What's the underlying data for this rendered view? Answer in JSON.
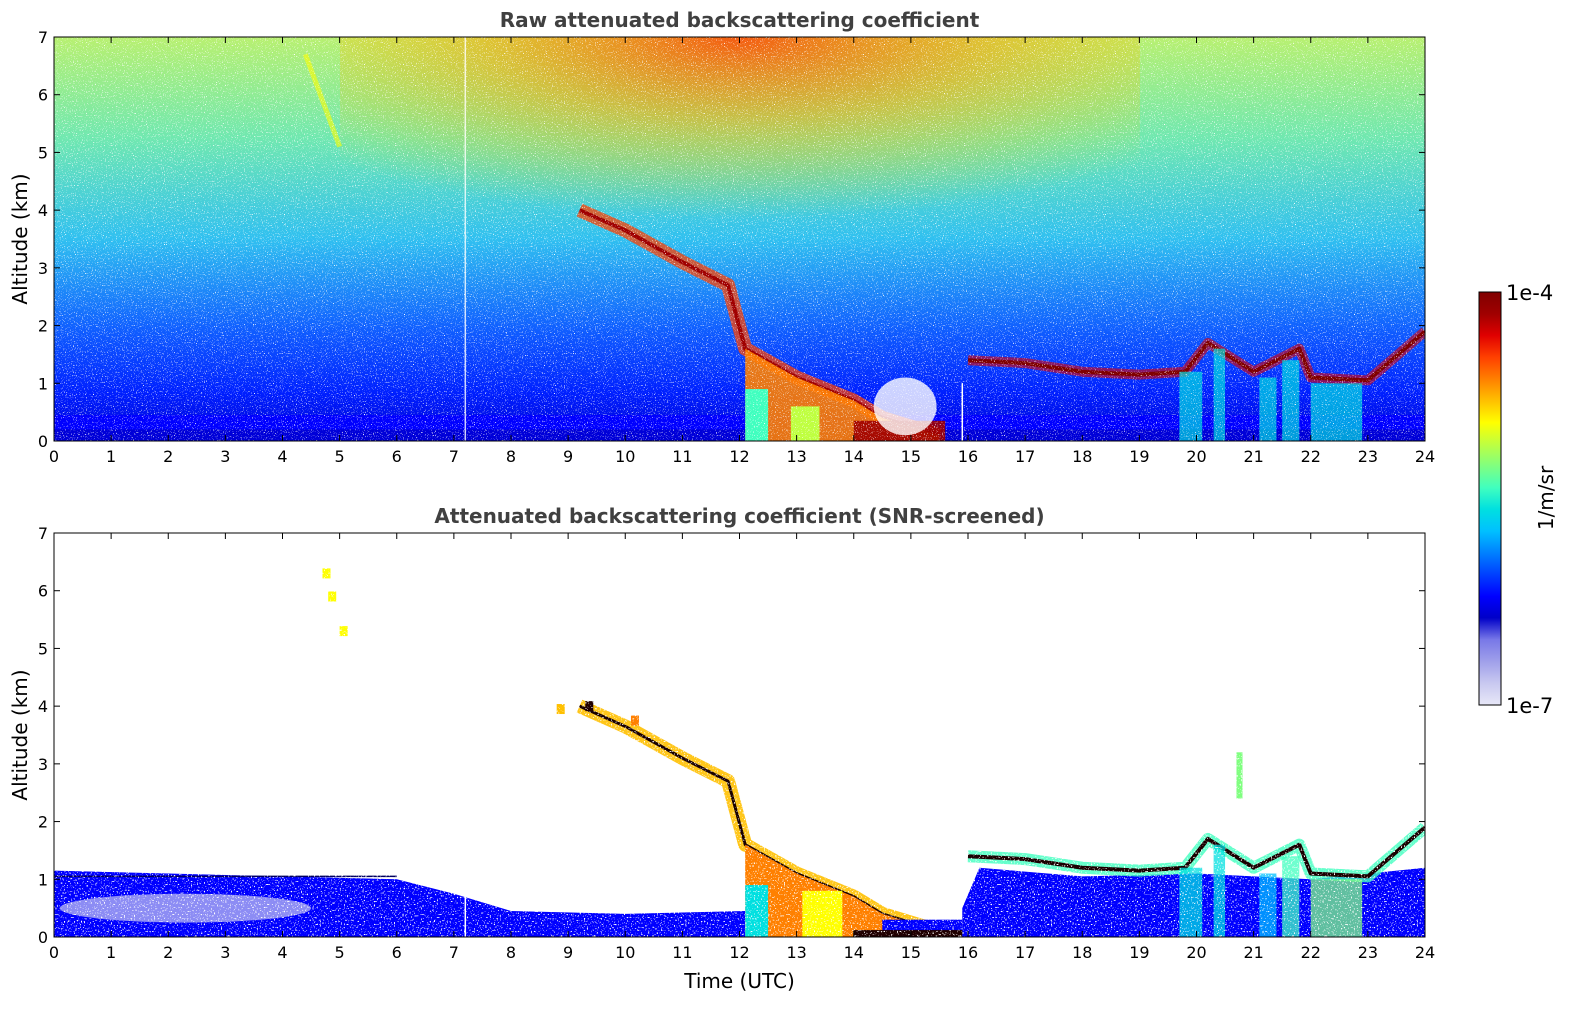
{
  "colors": {
    "colormap": [
      "#0000c8",
      "#0000ff",
      "#0040ff",
      "#0080ff",
      "#00c0ff",
      "#00e0e0",
      "#40ffbf",
      "#80ff80",
      "#bfff40",
      "#ffff00",
      "#ffc000",
      "#ff8000",
      "#ff4000",
      "#e00000",
      "#a00000",
      "#800000"
    ],
    "colormap_low_tints": [
      "#e8e8f8",
      "#c8c8f0",
      "#a0a0ea",
      "#7878e8"
    ],
    "text": "#404040"
  },
  "chart_data": [
    {
      "type": "heatmap",
      "title": "Raw attenuated backscattering coefficient",
      "xlabel": "",
      "ylabel": "Altitude (km)",
      "xlim": [
        0,
        24
      ],
      "ylim": [
        0,
        7
      ],
      "xticks": [
        "0",
        "1",
        "2",
        "3",
        "4",
        "5",
        "6",
        "7",
        "8",
        "9",
        "10",
        "11",
        "12",
        "13",
        "14",
        "15",
        "16",
        "17",
        "18",
        "19",
        "20",
        "21",
        "22",
        "23",
        "24"
      ],
      "yticks": [
        "0",
        "1",
        "2",
        "3",
        "4",
        "5",
        "6",
        "7"
      ],
      "variable": "attenuated backscatter",
      "features": [
        {
          "kind": "cloud_layer",
          "x": [
            9.2,
            10.0,
            11.0,
            11.8,
            12.1,
            13.0,
            14.0,
            14.5,
            15.0,
            15.5
          ],
          "y": [
            4.0,
            3.65,
            3.1,
            2.7,
            1.6,
            1.1,
            0.7,
            0.4,
            0.25,
            0.1
          ]
        },
        {
          "kind": "cloud_layer",
          "x": [
            16.0,
            17.0,
            18.0,
            19.0,
            19.8,
            20.2,
            21.0,
            21.8,
            22.0,
            23.0,
            24.0
          ],
          "y": [
            1.4,
            1.35,
            1.2,
            1.15,
            1.2,
            1.7,
            1.2,
            1.6,
            1.1,
            1.05,
            1.9
          ]
        },
        {
          "kind": "boundary_layer",
          "x": [
            0,
            24
          ],
          "y_top": 0.45
        }
      ],
      "grid": false
    },
    {
      "type": "heatmap",
      "title": "Attenuated backscattering coefficient (SNR-screened)",
      "xlabel": "Time (UTC)",
      "ylabel": "Altitude (km)",
      "xlim": [
        0,
        24
      ],
      "ylim": [
        0,
        7
      ],
      "xticks": [
        "0",
        "1",
        "2",
        "3",
        "4",
        "5",
        "6",
        "7",
        "8",
        "9",
        "10",
        "11",
        "12",
        "13",
        "14",
        "15",
        "16",
        "17",
        "18",
        "19",
        "20",
        "21",
        "22",
        "23",
        "24"
      ],
      "yticks": [
        "0",
        "1",
        "2",
        "3",
        "4",
        "5",
        "6",
        "7"
      ],
      "variable": "attenuated backscatter, SNR-screened",
      "grid": false
    }
  ],
  "colorbar": {
    "min_label": "1e-7",
    "max_label": "1e-4",
    "label": "1/m/sr",
    "scale": "log",
    "range": [
      1e-07,
      0.0001
    ]
  }
}
